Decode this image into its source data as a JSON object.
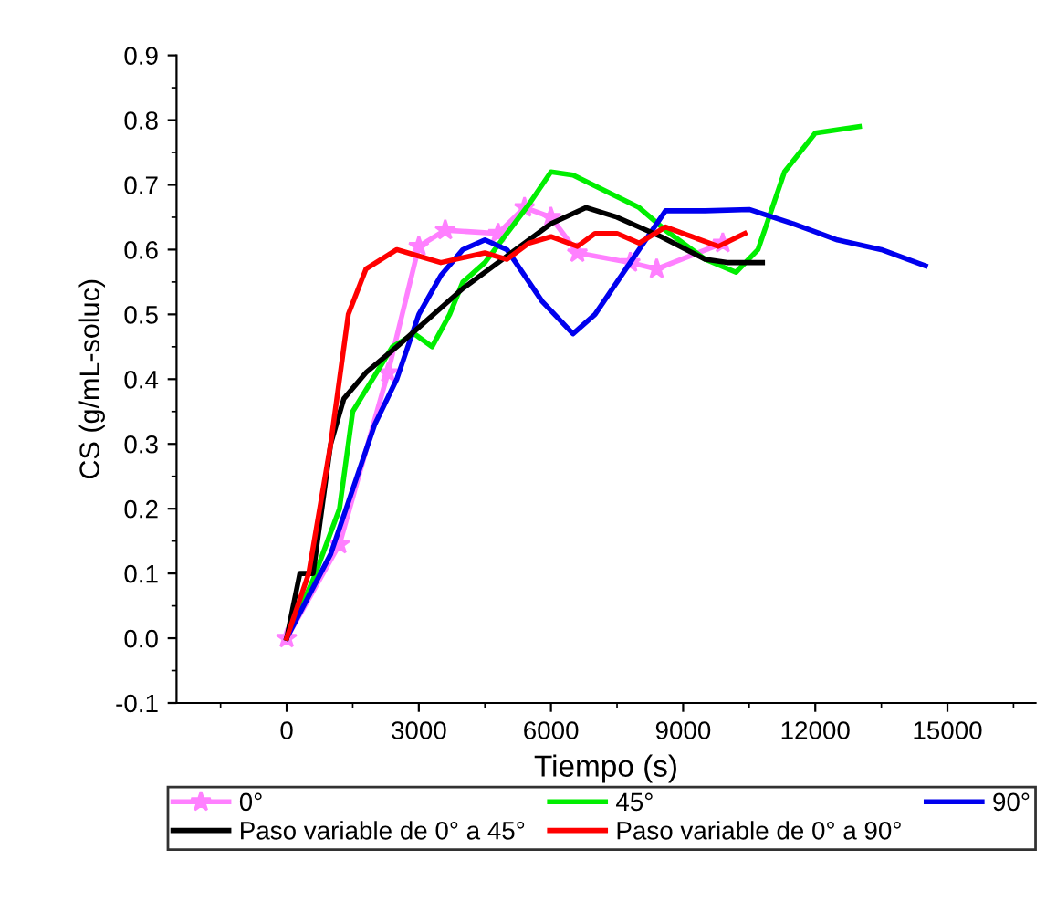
{
  "chart_data": {
    "type": "line",
    "xlabel": "Tiempo (s)",
    "ylabel": "CS (g/mL-soluc)",
    "xlim": [
      -2500,
      17000
    ],
    "ylim": [
      -0.1,
      0.9
    ],
    "xticks": [
      0,
      3000,
      6000,
      9000,
      12000,
      15000
    ],
    "yticks": [
      -0.1,
      {
        "value": 0,
        "label": "0.0"
      },
      0.1,
      0.2,
      0.3,
      0.4,
      0.5,
      0.6,
      0.7,
      0.8,
      0.9
    ],
    "grid": false,
    "legend": "bottom",
    "series": [
      {
        "name": "0°",
        "color": "#ff80ff",
        "marker": "star",
        "x": [
          0,
          1200,
          2300,
          3000,
          3600,
          4800,
          5400,
          6000,
          6600,
          7800,
          8400,
          9900
        ],
        "values": [
          0,
          0.145,
          0.41,
          0.605,
          0.63,
          0.625,
          0.665,
          0.65,
          0.595,
          0.58,
          0.57,
          0.61
        ]
      },
      {
        "name": "45°",
        "color": "#00ee00",
        "x": [
          0,
          600,
          1200,
          1500,
          2400,
          2900,
          3300,
          3700,
          4000,
          4500,
          5500,
          6000,
          6500,
          8000,
          8600,
          9500,
          10200,
          10700,
          11300,
          12000,
          13000
        ],
        "values": [
          0,
          0.09,
          0.2,
          0.35,
          0.45,
          0.47,
          0.45,
          0.5,
          0.55,
          0.58,
          0.67,
          0.72,
          0.715,
          0.665,
          0.63,
          0.585,
          0.565,
          0.6,
          0.72,
          0.78,
          0.79
        ]
      },
      {
        "name": "90°",
        "color": "#0000ee",
        "x": [
          0,
          1000,
          2000,
          2500,
          3000,
          3500,
          4000,
          4500,
          5000,
          5800,
          6500,
          7000,
          8000,
          8600,
          9500,
          10500,
          11500,
          12500,
          13500,
          14500
        ],
        "values": [
          0,
          0.13,
          0.33,
          0.4,
          0.5,
          0.56,
          0.6,
          0.615,
          0.6,
          0.52,
          0.47,
          0.5,
          0.6,
          0.66,
          0.66,
          0.662,
          0.64,
          0.615,
          0.6,
          0.575
        ]
      },
      {
        "name": "Paso variable de 0° a 45°",
        "color": "#000000",
        "x": [
          0,
          300,
          600,
          1000,
          1300,
          1800,
          2500,
          3000,
          4000,
          5000,
          6000,
          6800,
          7500,
          8500,
          9500,
          10000,
          10800
        ],
        "values": [
          0,
          0.1,
          0.1,
          0.3,
          0.37,
          0.41,
          0.45,
          0.48,
          0.54,
          0.59,
          0.64,
          0.665,
          0.65,
          0.62,
          0.585,
          0.58,
          0.58
        ]
      },
      {
        "name": "Paso variable de 0° a 90°",
        "color": "#ff0000",
        "x": [
          0,
          500,
          1000,
          1400,
          1800,
          2500,
          3000,
          3500,
          4500,
          5000,
          5500,
          6000,
          6600,
          7000,
          7500,
          8000,
          8600,
          9200,
          9800,
          10400
        ],
        "values": [
          0,
          0.1,
          0.3,
          0.5,
          0.57,
          0.6,
          0.59,
          0.58,
          0.595,
          0.585,
          0.61,
          0.62,
          0.605,
          0.625,
          0.625,
          0.61,
          0.635,
          0.62,
          0.605,
          0.625
        ]
      }
    ]
  }
}
